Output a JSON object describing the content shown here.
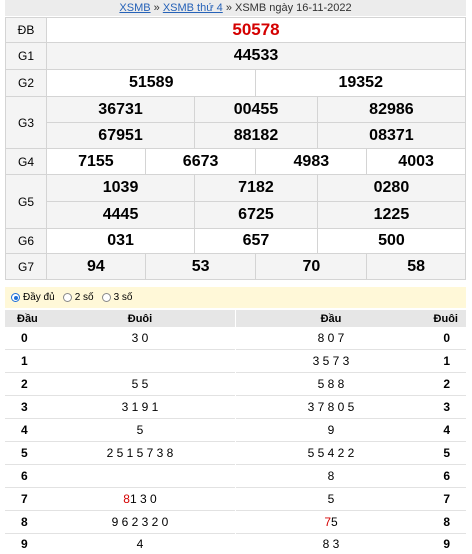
{
  "breadcrumb": {
    "link1": "XSMB",
    "sep1": " » ",
    "link2": "XSMB thứ 4",
    "sep2": " » ",
    "current": "XSMB ngày 16-11-2022"
  },
  "results": {
    "db": {
      "label": "ĐB",
      "values": [
        "50578"
      ]
    },
    "g1": {
      "label": "G1",
      "values": [
        "44533"
      ]
    },
    "g2": {
      "label": "G2",
      "values": [
        "51589",
        "19352"
      ]
    },
    "g3": {
      "label": "G3",
      "values": [
        "36731",
        "00455",
        "82986",
        "67951",
        "88182",
        "08371"
      ]
    },
    "g4": {
      "label": "G4",
      "values": [
        "7155",
        "6673",
        "4983",
        "4003"
      ]
    },
    "g5": {
      "label": "G5",
      "values": [
        "1039",
        "7182",
        "0280",
        "4445",
        "6725",
        "1225"
      ]
    },
    "g6": {
      "label": "G6",
      "values": [
        "031",
        "657",
        "500"
      ]
    },
    "g7": {
      "label": "G7",
      "values": [
        "94",
        "53",
        "70",
        "58"
      ]
    }
  },
  "options": {
    "full": "Đầy đủ",
    "two": "2 số",
    "three": "3 số",
    "selected": "full"
  },
  "loto_left": {
    "header_dau": "Đầu",
    "header_duoi": "Đuôi",
    "rows": [
      {
        "dau": "0",
        "duoi": "3 0",
        "hl": ""
      },
      {
        "dau": "1",
        "duoi": "",
        "hl": ""
      },
      {
        "dau": "2",
        "duoi": "5 5",
        "hl": ""
      },
      {
        "dau": "3",
        "duoi": "3 1 9 1",
        "hl": ""
      },
      {
        "dau": "4",
        "duoi": "5",
        "hl": ""
      },
      {
        "dau": "5",
        "duoi": "2 5 1 5 7 3 8",
        "hl": ""
      },
      {
        "dau": "6",
        "duoi": "",
        "hl": ""
      },
      {
        "dau": "7",
        "duoi": "1 3 0",
        "hl": "8"
      },
      {
        "dau": "8",
        "duoi": "9 6 2 3 2 0",
        "hl": ""
      },
      {
        "dau": "9",
        "duoi": "4",
        "hl": ""
      }
    ]
  },
  "loto_right": {
    "header_dau": "Đầu",
    "header_duoi": "Đuôi",
    "rows": [
      {
        "dau": "8 0 7",
        "duoi": "0",
        "hl": ""
      },
      {
        "dau": "3 5 7 3",
        "duoi": "1",
        "hl": ""
      },
      {
        "dau": "5 8 8",
        "duoi": "2",
        "hl": ""
      },
      {
        "dau": "3 7 8 0 5",
        "duoi": "3",
        "hl": ""
      },
      {
        "dau": "9",
        "duoi": "4",
        "hl": ""
      },
      {
        "dau": "5 5 4 2 2",
        "duoi": "5",
        "hl": ""
      },
      {
        "dau": "8",
        "duoi": "6",
        "hl": ""
      },
      {
        "dau": "5",
        "duoi": "7",
        "hl": ""
      },
      {
        "dau": "5",
        "duoi": "8",
        "hl": "7"
      },
      {
        "dau": "8 3",
        "duoi": "9",
        "hl": ""
      }
    ]
  },
  "colors": {
    "special": "#d40000",
    "link": "#2662b8",
    "options_bg": "#fff8d8"
  }
}
